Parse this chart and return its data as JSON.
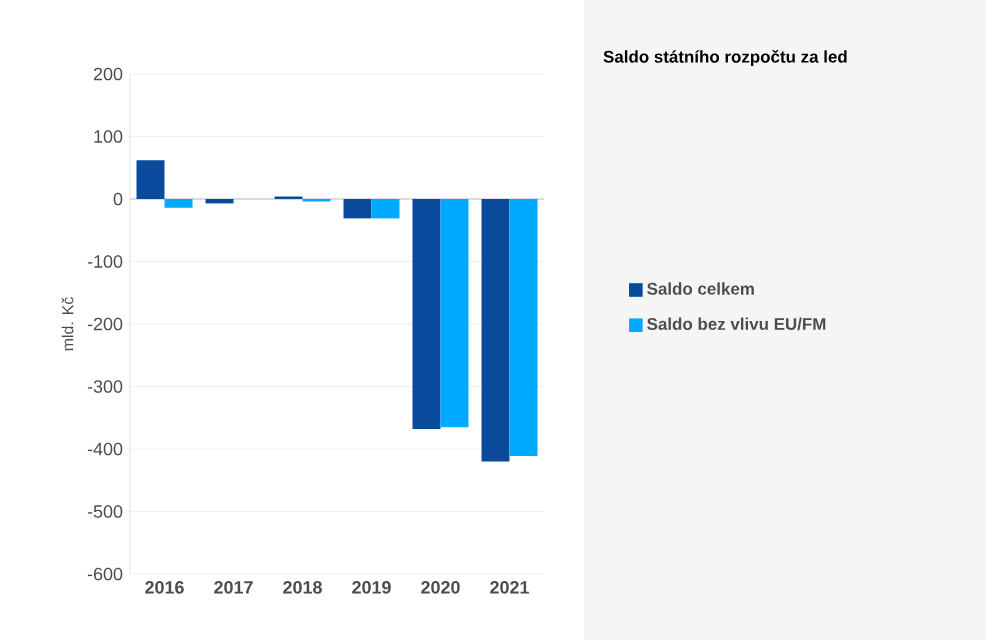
{
  "chart_data": {
    "type": "bar",
    "title": "Saldo státního rozpočtu za led",
    "ylabel": "mld. Kč",
    "categories": [
      "2016",
      "2017",
      "2018",
      "2019",
      "2020",
      "2021"
    ],
    "series": [
      {
        "name": "Saldo celkem",
        "color": "#0a4a9c",
        "values": [
          62,
          -7,
          4,
          -31,
          -368,
          -420
        ]
      },
      {
        "name": "Saldo bez vlivu EU/FM",
        "color": "#00aaff",
        "values": [
          -14,
          0,
          -4,
          -31,
          -365,
          -411
        ]
      }
    ],
    "ylim": [
      -600,
      200
    ],
    "yticks": [
      -600,
      -500,
      -400,
      -300,
      -200,
      -100,
      0,
      100,
      200
    ],
    "grid": "y",
    "legend": "right"
  }
}
